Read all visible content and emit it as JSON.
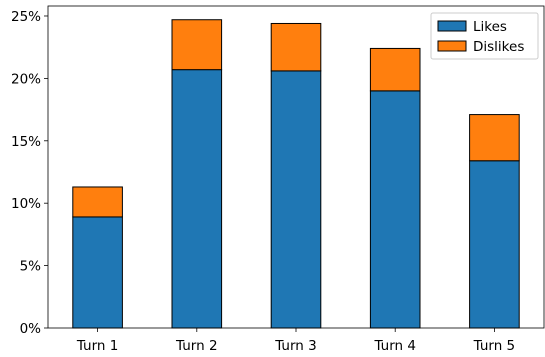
{
  "chart_data": {
    "type": "bar",
    "stacked": true,
    "categories": [
      "Turn 1",
      "Turn 2",
      "Turn 3",
      "Turn 4",
      "Turn 5"
    ],
    "series": [
      {
        "name": "Likes",
        "color": "#1f77b4",
        "values": [
          8.9,
          20.7,
          20.6,
          19.0,
          13.4
        ]
      },
      {
        "name": "Dislikes",
        "color": "#ff7f0e",
        "values": [
          2.4,
          4.0,
          3.8,
          3.4,
          3.7
        ]
      }
    ],
    "y_ticks": [
      0,
      5,
      10,
      15,
      20,
      25
    ],
    "y_tick_suffix": "%",
    "ylim": [
      0,
      25.8
    ],
    "legend_position": "top-right",
    "grid": false
  }
}
